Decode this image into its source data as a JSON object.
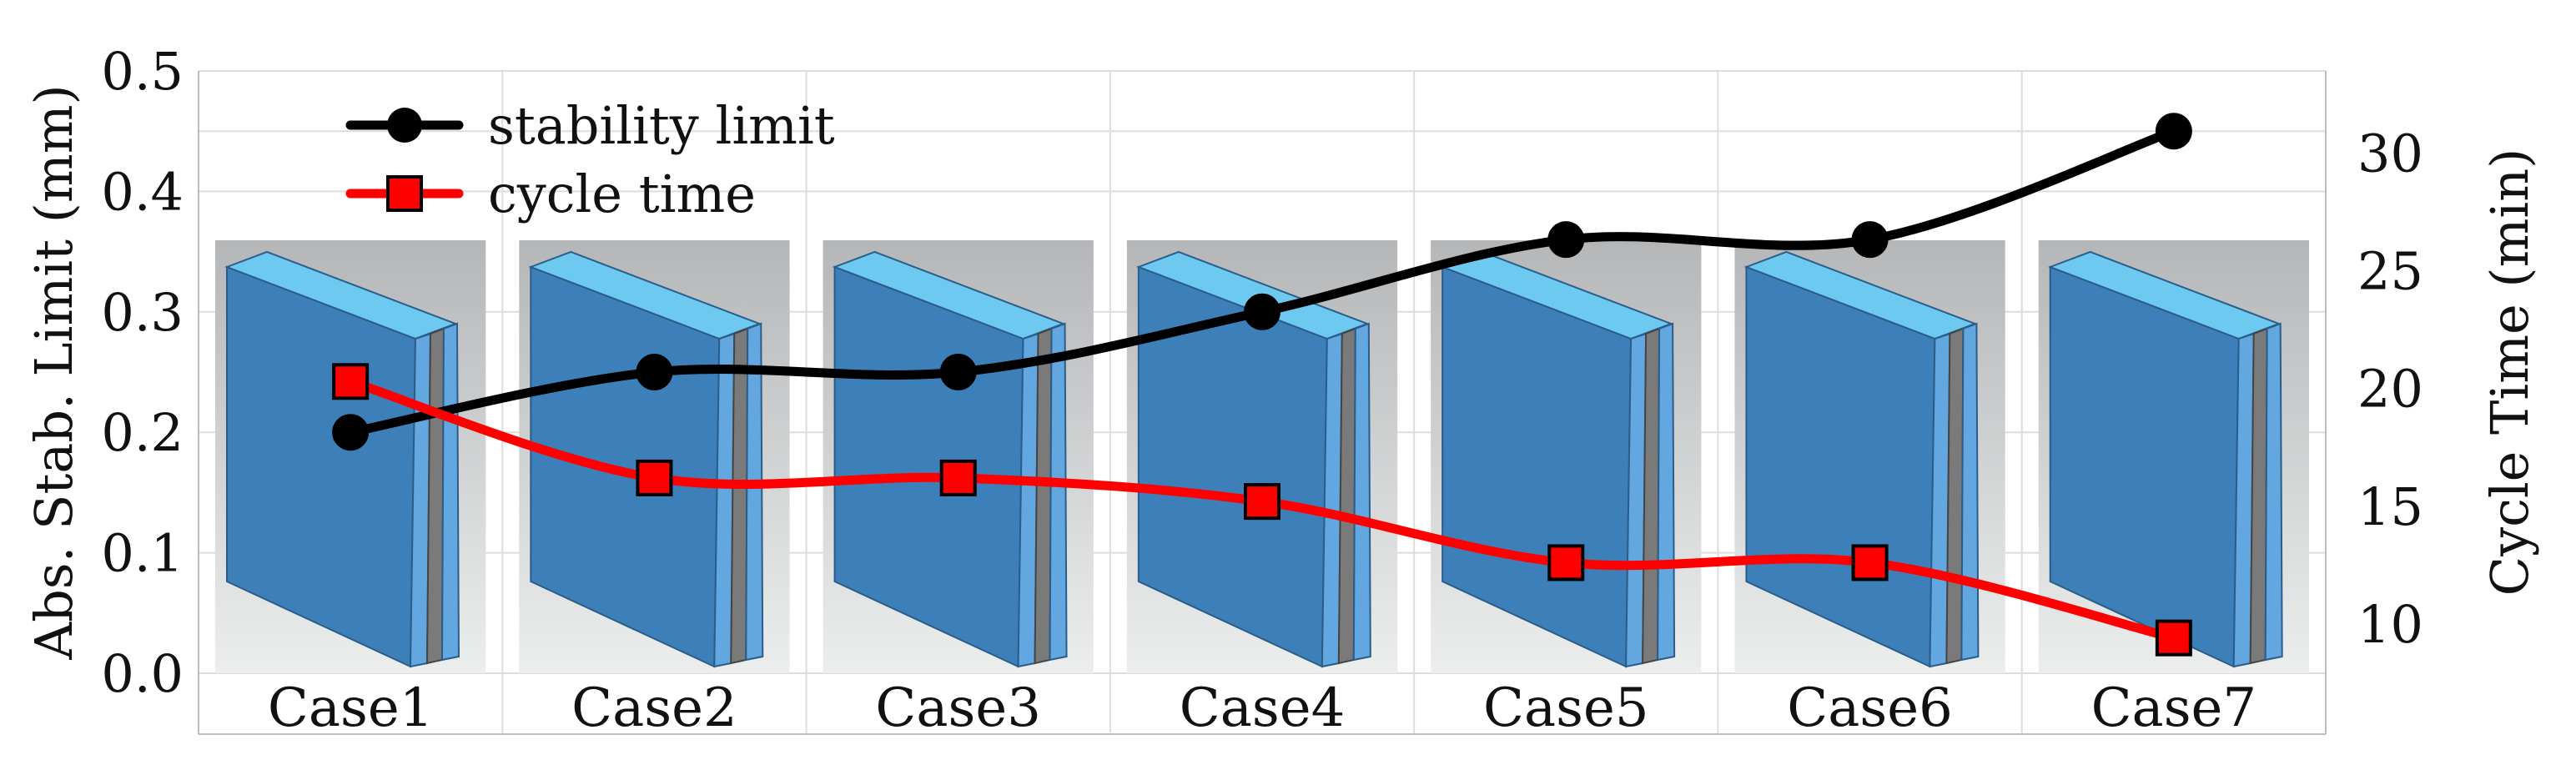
{
  "chart_data": {
    "type": "line",
    "categories": [
      "Case1",
      "Case2",
      "Case3",
      "Case4",
      "Case5",
      "Case6",
      "Case7"
    ],
    "series": [
      {
        "name": "stability limit",
        "axis": "left",
        "marker": "circle",
        "color": "#000000",
        "values": [
          0.2,
          0.25,
          0.25,
          0.3,
          0.36,
          0.36,
          0.45
        ]
      },
      {
        "name": "cycle time",
        "axis": "right",
        "marker": "square",
        "color": "#ff0000",
        "values": [
          20.3,
          16.2,
          16.2,
          15.2,
          12.6,
          12.6,
          9.4
        ]
      }
    ],
    "ylabel": "Abs. Stab. Limit (mm)",
    "ylabel_right": "Cycle Time (min)",
    "ylim": [
      0.0,
      0.5
    ],
    "ylim_right": [
      7.9,
      33.5
    ],
    "yticks": [
      "0.0",
      "0.1",
      "0.2",
      "0.3",
      "0.4",
      "0.5"
    ],
    "yticks_right": [
      "10",
      "15",
      "20",
      "25",
      "30"
    ],
    "legend_position": "top-left",
    "grid": true,
    "line_style": "smooth",
    "background_images": "blade-thumbnail-per-case"
  },
  "colors": {
    "blade_face": "#3d7fb8",
    "blade_edge": "#62a7e0",
    "blade_top": "#6ec9f0",
    "blade_core": "#7a7a7a",
    "panel_top": "#b4b6b8",
    "panel_bottom": "#eceeee",
    "grid": "#dddddd"
  }
}
